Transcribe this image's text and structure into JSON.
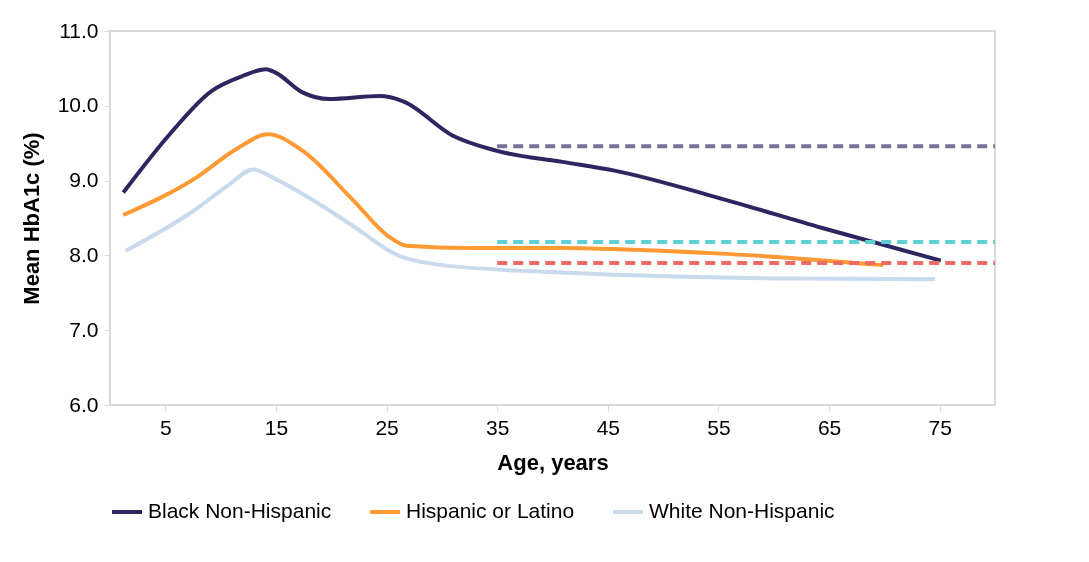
{
  "chart_data": {
    "type": "line",
    "xlabel": "Age, years",
    "ylabel": "Mean HbA1c (%)",
    "xlim": [
      0,
      80
    ],
    "xticks": [
      5,
      15,
      25,
      35,
      45,
      55,
      65,
      75
    ],
    "ylim": [
      6,
      11
    ],
    "yticks": [
      {
        "value": 6,
        "label": "6.0"
      },
      {
        "value": 7,
        "label": "7.0"
      },
      {
        "value": 8,
        "label": "8.0"
      },
      {
        "value": 9,
        "label": "9.0"
      },
      {
        "value": 10,
        "label": "10.0"
      },
      {
        "value": 11,
        "label": "11.0"
      }
    ],
    "grid": false,
    "legend": "bottom",
    "marker": "none",
    "line_style": "solid",
    "series": [
      {
        "name": "Black Non-Hispanic",
        "color": "#2e2660",
        "x": [
          1.2,
          5.4,
          9.2,
          12.0,
          14.1,
          15.0,
          17.4,
          19.8,
          24.4,
          26.5,
          31.0,
          34.9,
          40.9,
          45.7,
          55.0,
          64.3,
          75.1
        ],
        "values": [
          8.84,
          9.62,
          10.2,
          10.4,
          10.49,
          10.44,
          10.18,
          10.09,
          10.13,
          10.06,
          9.6,
          9.4,
          9.25,
          9.13,
          8.77,
          8.37,
          7.93
        ]
      },
      {
        "name": "Hispanic or Latino",
        "color": "#ff9933",
        "x": [
          1.2,
          7.8,
          11.4,
          14.3,
          17.4,
          21.9,
          25.3,
          26.8,
          32.5,
          40.9,
          50.2,
          59.2,
          69.9
        ],
        "values": [
          8.54,
          9.04,
          9.42,
          9.62,
          9.4,
          8.75,
          8.24,
          8.13,
          8.1,
          8.1,
          8.06,
          7.99,
          7.87
        ]
      },
      {
        "name": "White Non-Hispanic",
        "color": "#c9d9ee",
        "x": [
          1.4,
          7.5,
          10.8,
          12.9,
          14.7,
          18.0,
          22.2,
          25.9,
          29.5,
          40.9,
          50.2,
          62.2,
          74.6
        ],
        "values": [
          8.06,
          8.59,
          8.95,
          9.15,
          9.04,
          8.77,
          8.37,
          8.01,
          7.88,
          7.77,
          7.72,
          7.69,
          7.68
        ]
      },
      {
        "color": "#7b6f9a",
        "line_style": "dashed",
        "x": [
          35,
          80
        ],
        "values": [
          9.46,
          9.46
        ]
      },
      {
        "color": "#5fcfd4",
        "line_style": "dashed",
        "x": [
          35,
          80
        ],
        "values": [
          8.18,
          8.18
        ]
      },
      {
        "color": "#ec6b64",
        "line_style": "dashed",
        "x": [
          35,
          80
        ],
        "values": [
          7.9,
          7.9
        ]
      }
    ]
  }
}
